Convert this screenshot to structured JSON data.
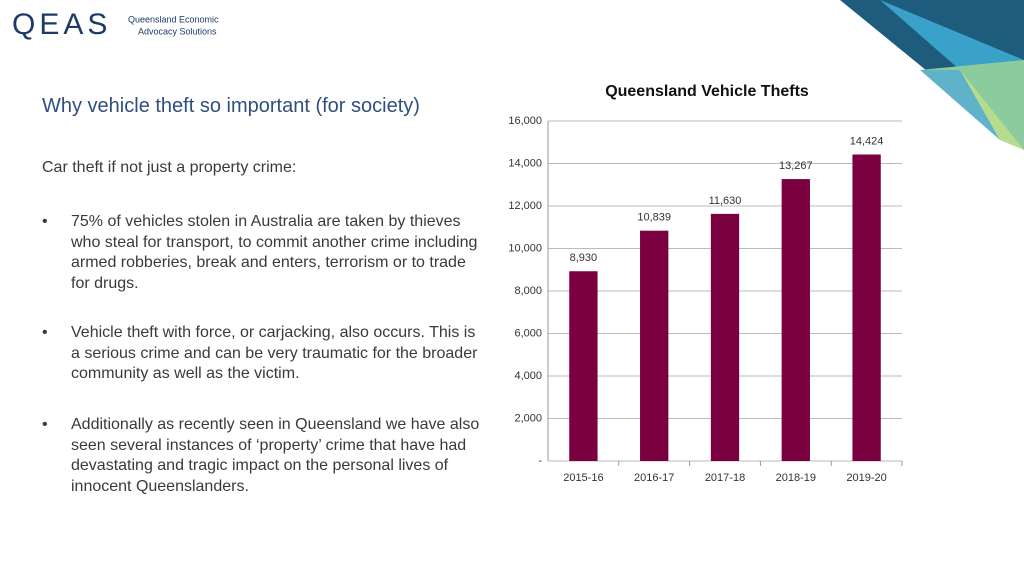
{
  "header": {
    "logo": "QEAS",
    "org_line1": "Queensland Economic",
    "org_line2": "Advocacy Solutions"
  },
  "slide": {
    "heading": "Why vehicle theft so important (for society)",
    "intro": "Car theft if not just a property crime:",
    "bullets": [
      "75% of vehicles stolen in Australia are taken by thieves who steal for transport, to commit another crime including armed robberies, break and enters, terrorism or to trade for drugs.",
      "Vehicle theft with force, or carjacking, also occurs. This is a serious crime and can be very traumatic for the broader community as well as the victim.",
      "Additionally as recently seen in Queensland we have also seen several instances of ‘property’ crime that have had devastating and tragic impact on the personal lives of innocent Queenslanders."
    ]
  },
  "chart_data": {
    "type": "bar",
    "title": "Queensland Vehicle Thefts",
    "categories": [
      "2015-16",
      "2016-17",
      "2017-18",
      "2018-19",
      "2019-20"
    ],
    "values": [
      8930,
      10839,
      11630,
      13267,
      14424
    ],
    "value_labels": [
      "8,930",
      "10,839",
      "11,630",
      "13,267",
      "14,424"
    ],
    "color": "#7b0040",
    "ylim": [
      0,
      16000
    ],
    "yticks": [
      {
        "value": 0,
        "label": "-"
      },
      {
        "value": 2000,
        "label": "2,000"
      },
      {
        "value": 4000,
        "label": "4,000"
      },
      {
        "value": 6000,
        "label": "6,000"
      },
      {
        "value": 8000,
        "label": "8,000"
      },
      {
        "value": 10000,
        "label": "10,000"
      },
      {
        "value": 12000,
        "label": "12,000"
      },
      {
        "value": 14000,
        "label": "14,000"
      },
      {
        "value": 16000,
        "label": "16,000"
      }
    ],
    "grid": true
  }
}
